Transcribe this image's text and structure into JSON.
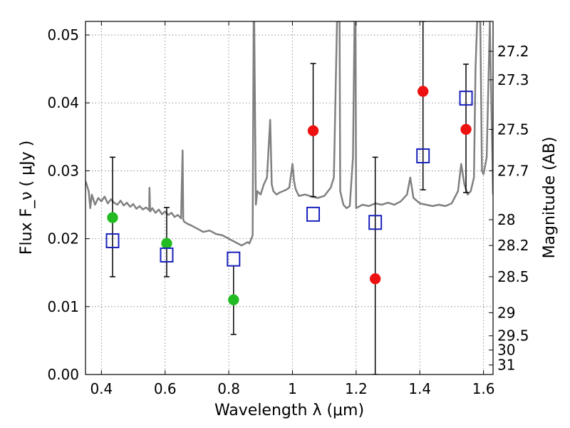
{
  "chart_data": {
    "type": "scatter",
    "title": "",
    "xlabel": "Wavelength  λ (μm)",
    "ylabel": "Flux  F_ν  ( μJy )",
    "y2label": "Magnitude (AB)",
    "xlim": [
      0.35,
      1.63
    ],
    "ylim": [
      0.0,
      0.052
    ],
    "grid": true,
    "x_ticks": [
      0.4,
      0.6,
      0.8,
      1.0,
      1.2,
      1.4,
      1.6
    ],
    "x_tick_labels": [
      "0.4",
      "0.6",
      "0.8",
      "1",
      "1.2",
      "1.4",
      "1.6"
    ],
    "y_ticks": [
      0.0,
      0.01,
      0.02,
      0.03,
      0.04,
      0.05
    ],
    "y_tick_labels": [
      "0.00",
      "0.01",
      "0.02",
      "0.03",
      "0.04",
      "0.05"
    ],
    "y2_ticks": [
      {
        "label": "27.2",
        "flux": 0.0476
      },
      {
        "label": "27.3",
        "flux": 0.0434
      },
      {
        "label": "27.5",
        "flux": 0.0361
      },
      {
        "label": "27.7",
        "flux": 0.03
      },
      {
        "label": "28",
        "flux": 0.0228
      },
      {
        "label": "28.2",
        "flux": 0.019
      },
      {
        "label": "28.5",
        "flux": 0.0144
      },
      {
        "label": "29",
        "flux": 0.0091
      },
      {
        "label": "29.5",
        "flux": 0.0057
      },
      {
        "label": "30",
        "flux": 0.0036
      },
      {
        "label": "31",
        "flux": 0.0014
      }
    ],
    "series": [
      {
        "marker": "circle",
        "color": "#22bb22",
        "points": [
          {
            "x": 0.435,
            "y": 0.0231,
            "err_lo": 0.0144,
            "err_hi": 0.032
          },
          {
            "x": 0.605,
            "y": 0.0193,
            "err_lo": 0.0144,
            "err_hi": 0.0246
          },
          {
            "x": 0.815,
            "y": 0.011,
            "err_lo": 0.0059,
            "err_hi": 0.016
          }
        ]
      },
      {
        "marker": "circle",
        "color": "#ee1111",
        "points": [
          {
            "x": 1.065,
            "y": 0.0359,
            "err_lo": 0.0262,
            "err_hi": 0.0458
          },
          {
            "x": 1.26,
            "y": 0.0141,
            "err_lo": 0.0,
            "err_hi": 0.032
          },
          {
            "x": 1.41,
            "y": 0.0417,
            "err_lo": 0.0272,
            "err_hi": 0.052
          },
          {
            "x": 1.545,
            "y": 0.0361,
            "err_lo": 0.0268,
            "err_hi": 0.0457
          }
        ]
      },
      {
        "marker": "square-open",
        "color": "#1a22bb",
        "points": [
          {
            "x": 0.435,
            "y": 0.0197
          },
          {
            "x": 0.605,
            "y": 0.0176
          },
          {
            "x": 0.815,
            "y": 0.017
          },
          {
            "x": 1.065,
            "y": 0.0236
          },
          {
            "x": 1.26,
            "y": 0.0224
          },
          {
            "x": 1.41,
            "y": 0.0322
          },
          {
            "x": 1.545,
            "y": 0.0407
          }
        ]
      }
    ],
    "spectrum": {
      "color": "#808080",
      "x": [
        0.35,
        0.36,
        0.365,
        0.37,
        0.38,
        0.39,
        0.4,
        0.41,
        0.42,
        0.43,
        0.44,
        0.45,
        0.46,
        0.47,
        0.48,
        0.49,
        0.5,
        0.51,
        0.52,
        0.53,
        0.54,
        0.55,
        0.551,
        0.553,
        0.56,
        0.57,
        0.58,
        0.59,
        0.6,
        0.61,
        0.62,
        0.63,
        0.64,
        0.65,
        0.655,
        0.657,
        0.66,
        0.67,
        0.68,
        0.7,
        0.72,
        0.74,
        0.76,
        0.78,
        0.8,
        0.82,
        0.84,
        0.86,
        0.865,
        0.875,
        0.878,
        0.88,
        0.885,
        0.89,
        0.9,
        0.91,
        0.92,
        0.93,
        0.935,
        0.94,
        0.95,
        0.96,
        0.97,
        0.98,
        0.99,
        1.0,
        1.005,
        1.01,
        1.02,
        1.04,
        1.06,
        1.08,
        1.1,
        1.12,
        1.13,
        1.14,
        1.148,
        1.15,
        1.16,
        1.17,
        1.18,
        1.19,
        1.195,
        1.198,
        1.2,
        1.22,
        1.24,
        1.26,
        1.28,
        1.3,
        1.32,
        1.34,
        1.36,
        1.37,
        1.38,
        1.4,
        1.42,
        1.44,
        1.46,
        1.48,
        1.5,
        1.52,
        1.53,
        1.54,
        1.55,
        1.56,
        1.57,
        1.575,
        1.58,
        1.59,
        1.595,
        1.6,
        1.61,
        1.62,
        1.63
      ],
      "y": [
        0.0285,
        0.027,
        0.0245,
        0.0265,
        0.025,
        0.026,
        0.0255,
        0.0262,
        0.0252,
        0.0258,
        0.0253,
        0.025,
        0.0256,
        0.0249,
        0.0253,
        0.0247,
        0.0251,
        0.0244,
        0.0248,
        0.0243,
        0.0246,
        0.0242,
        0.0275,
        0.024,
        0.0245,
        0.0238,
        0.0243,
        0.0236,
        0.024,
        0.0235,
        0.0238,
        0.0232,
        0.0235,
        0.023,
        0.033,
        0.0228,
        0.0225,
        0.0222,
        0.022,
        0.0215,
        0.021,
        0.0212,
        0.0207,
        0.0205,
        0.02,
        0.0195,
        0.019,
        0.0195,
        0.0193,
        0.0205,
        0.052,
        0.052,
        0.025,
        0.027,
        0.0265,
        0.028,
        0.029,
        0.0375,
        0.028,
        0.027,
        0.0265,
        0.0268,
        0.027,
        0.0272,
        0.0275,
        0.031,
        0.0285,
        0.0273,
        0.0263,
        0.0265,
        0.0262,
        0.026,
        0.0263,
        0.0275,
        0.029,
        0.052,
        0.052,
        0.027,
        0.025,
        0.0245,
        0.0248,
        0.032,
        0.052,
        0.052,
        0.0245,
        0.025,
        0.0248,
        0.0252,
        0.025,
        0.0253,
        0.025,
        0.0255,
        0.0265,
        0.029,
        0.026,
        0.0252,
        0.025,
        0.0248,
        0.025,
        0.0248,
        0.0252,
        0.027,
        0.031,
        0.028,
        0.0265,
        0.027,
        0.029,
        0.045,
        0.052,
        0.052,
        0.03,
        0.0295,
        0.032,
        0.052,
        0.0265
      ]
    }
  }
}
